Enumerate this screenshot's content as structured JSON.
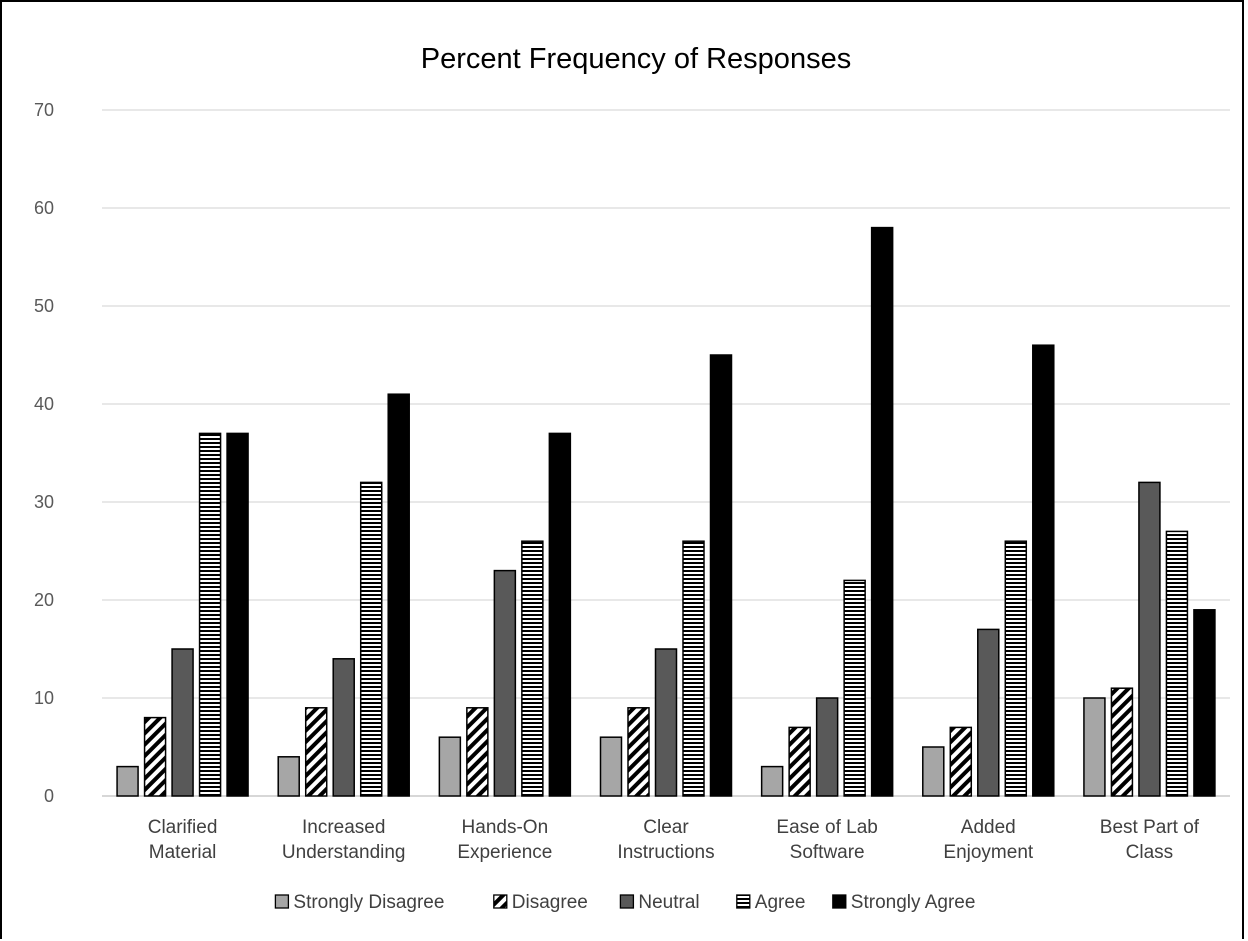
{
  "chart_data": {
    "type": "bar",
    "title": "Percent Frequency of Responses",
    "xlabel": "",
    "ylabel": "",
    "ylim": [
      0,
      70
    ],
    "yticks": [
      0,
      10,
      20,
      30,
      40,
      50,
      60,
      70
    ],
    "grid": true,
    "legend_position": "bottom",
    "categories": [
      [
        "Clarified",
        "Material"
      ],
      [
        "Increased",
        "Understanding"
      ],
      [
        "Hands-On",
        "Experience"
      ],
      [
        "Clear",
        "Instructions"
      ],
      [
        "Ease of Lab",
        "Software"
      ],
      [
        "Added",
        "Enjoyment"
      ],
      [
        "Best Part of",
        "Class"
      ]
    ],
    "series": [
      {
        "name": "Strongly Disagree",
        "pattern": "solid-light",
        "color": "#a6a6a6",
        "values": [
          3,
          4,
          6,
          6,
          3,
          5,
          10
        ]
      },
      {
        "name": "Disagree",
        "pattern": "diagonal-stripes",
        "color": "#000000",
        "values": [
          8,
          9,
          9,
          9,
          7,
          7,
          11
        ]
      },
      {
        "name": "Neutral",
        "pattern": "solid-dark",
        "color": "#595959",
        "values": [
          15,
          14,
          23,
          15,
          10,
          17,
          32
        ]
      },
      {
        "name": "Agree",
        "pattern": "horizontal-stripes",
        "color": "#000000",
        "values": [
          37,
          32,
          26,
          26,
          22,
          26,
          27
        ]
      },
      {
        "name": "Strongly Agree",
        "pattern": "solid-black",
        "color": "#000000",
        "values": [
          37,
          41,
          37,
          45,
          58,
          46,
          19
        ]
      }
    ]
  }
}
